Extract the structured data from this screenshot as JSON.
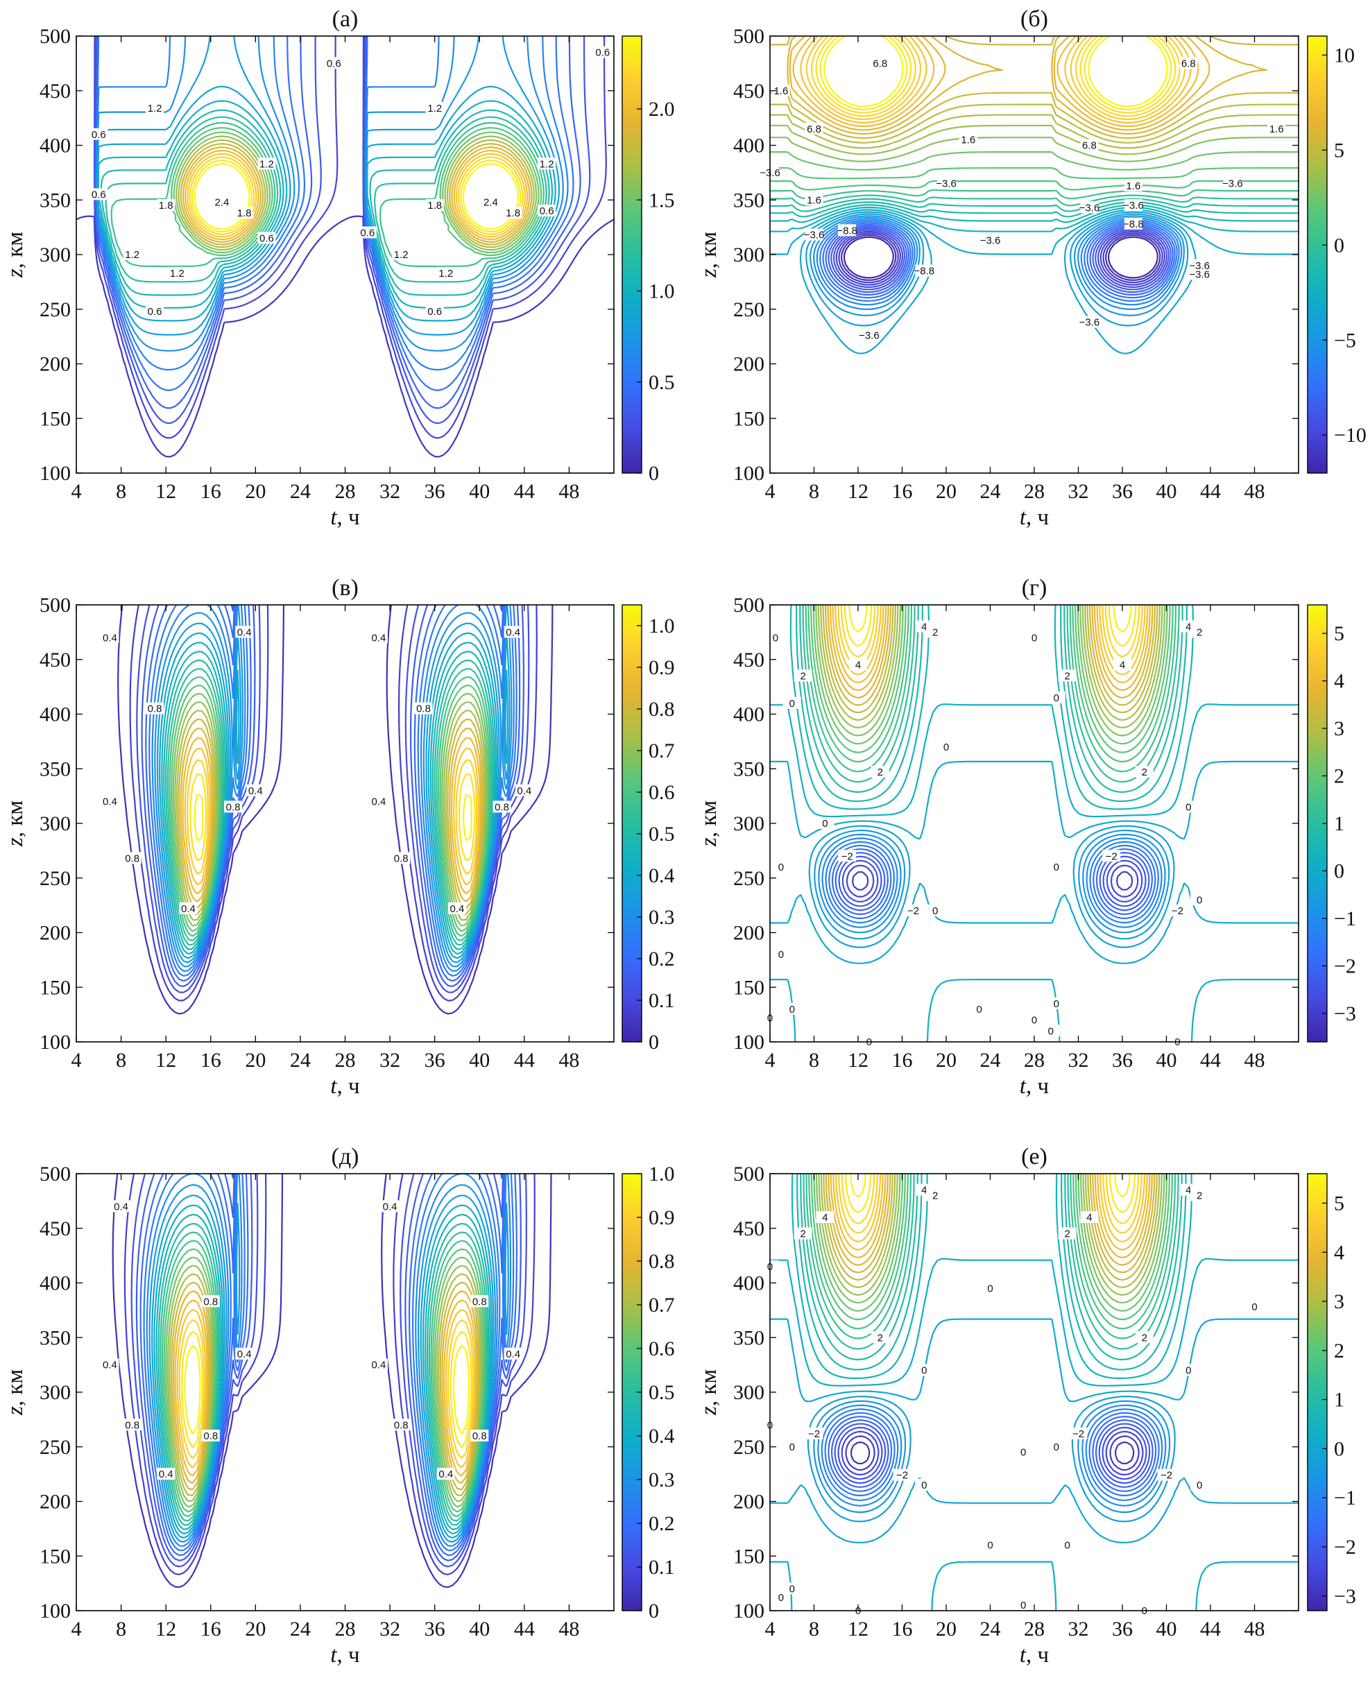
{
  "figure": {
    "xlabel_var": "t",
    "xlabel_unit": ", ч",
    "ylabel_var": "z",
    "ylabel_unit": ", км"
  },
  "chart_data": [
    {
      "id": "a",
      "title": "(а)",
      "type": "contour",
      "kind": "wave",
      "tpeak": 17,
      "zpeak": 345,
      "ztop": 500,
      "xlabel": "t, ч",
      "ylabel": "z, км",
      "xticks": [
        4,
        8,
        12,
        16,
        20,
        24,
        28,
        32,
        36,
        40,
        44,
        48
      ],
      "yticks": [
        100,
        150,
        200,
        250,
        300,
        350,
        400,
        450,
        500
      ],
      "xlim": [
        4,
        52
      ],
      "ylim": [
        100,
        500
      ],
      "colorbar": {
        "ticks": [
          0,
          0.5,
          1.0,
          1.5,
          2.0
        ],
        "labels": [
          "0",
          "0.5",
          "1.0",
          "1.5",
          "2.0"
        ],
        "range": [
          0,
          2.4
        ]
      },
      "levels": {
        "min": 0.1,
        "max": 2.4,
        "step": 0.1
      },
      "contour_labels": [
        {
          "text": "2.4",
          "t": 17,
          "z": 348
        },
        {
          "text": "1.8",
          "t": 12,
          "z": 345
        },
        {
          "text": "1.8",
          "t": 19,
          "z": 338
        },
        {
          "text": "1.2",
          "t": 9,
          "z": 300
        },
        {
          "text": "1.2",
          "t": 13,
          "z": 283
        },
        {
          "text": "0.6",
          "t": 11,
          "z": 248
        },
        {
          "text": "0.6",
          "t": 21,
          "z": 315
        },
        {
          "text": "1.2",
          "t": 11,
          "z": 434
        },
        {
          "text": "1.2",
          "t": 21,
          "z": 383
        },
        {
          "text": "0.6",
          "t": 6,
          "z": 410
        },
        {
          "text": "0.6",
          "t": 6,
          "z": 355
        },
        {
          "text": "0.6",
          "t": 27,
          "z": 475
        },
        {
          "text": "2.4",
          "t": 41,
          "z": 348
        },
        {
          "text": "1.8",
          "t": 36,
          "z": 345
        },
        {
          "text": "1.8",
          "t": 43,
          "z": 338
        },
        {
          "text": "1.2",
          "t": 33,
          "z": 300
        },
        {
          "text": "1.2",
          "t": 37,
          "z": 283
        },
        {
          "text": "0.6",
          "t": 36,
          "z": 248
        },
        {
          "text": "0.6",
          "t": 30,
          "z": 320
        },
        {
          "text": "1.2",
          "t": 36,
          "z": 434
        },
        {
          "text": "1.2",
          "t": 46,
          "z": 383
        },
        {
          "text": "0.6",
          "t": 46,
          "z": 340
        },
        {
          "text": "0.6",
          "t": 51,
          "z": 485
        }
      ]
    },
    {
      "id": "b",
      "title": "(б)",
      "type": "contour",
      "kind": "wind",
      "xlabel": "t, ч",
      "ylabel": "z, км",
      "xticks": [
        4,
        8,
        12,
        16,
        20,
        24,
        28,
        32,
        36,
        40,
        44,
        48
      ],
      "yticks": [
        100,
        150,
        200,
        250,
        300,
        350,
        400,
        450,
        500
      ],
      "xlim": [
        4,
        52
      ],
      "ylim": [
        100,
        500
      ],
      "colorbar": {
        "ticks": [
          -10,
          -5,
          0,
          5,
          10
        ],
        "labels": [
          "−10",
          "−5",
          "0",
          "5",
          "10"
        ],
        "range": [
          -12,
          11
        ]
      },
      "levels": {
        "min": -12,
        "max": 11,
        "step": 0.6
      },
      "contour_labels": [
        {
          "text": "1.6",
          "t": 5,
          "z": 450
        },
        {
          "text": "6.8",
          "t": 14,
          "z": 475
        },
        {
          "text": "6.8",
          "t": 8,
          "z": 415
        },
        {
          "text": "1.6",
          "t": 22,
          "z": 405
        },
        {
          "text": "−3.6",
          "t": 4,
          "z": 375
        },
        {
          "text": "1.6",
          "t": 8,
          "z": 350
        },
        {
          "text": "−3.6",
          "t": 8,
          "z": 318
        },
        {
          "text": "−8.8",
          "t": 11,
          "z": 322
        },
        {
          "text": "−3.6",
          "t": 20,
          "z": 365
        },
        {
          "text": "−3.6",
          "t": 24,
          "z": 313
        },
        {
          "text": "−8.8",
          "t": 18,
          "z": 285
        },
        {
          "text": "−3.6",
          "t": 13,
          "z": 226
        },
        {
          "text": "6.8",
          "t": 42,
          "z": 475
        },
        {
          "text": "6.8",
          "t": 33,
          "z": 400
        },
        {
          "text": "1.6",
          "t": 37,
          "z": 363
        },
        {
          "text": "−3.6",
          "t": 33,
          "z": 343
        },
        {
          "text": "−3.6",
          "t": 37,
          "z": 345
        },
        {
          "text": "−8.8",
          "t": 37,
          "z": 328
        },
        {
          "text": "−3.6",
          "t": 46,
          "z": 365
        },
        {
          "text": "1.6",
          "t": 50,
          "z": 415
        },
        {
          "text": "−3.6",
          "t": 33,
          "z": 238
        },
        {
          "text": "−3.6",
          "t": 43,
          "z": 282
        },
        {
          "text": "−3.6",
          "t": 43,
          "z": 290
        }
      ]
    },
    {
      "id": "c",
      "title": "(в)",
      "type": "contour",
      "kind": "plume",
      "tpeak": 15,
      "zpeak": 305,
      "xlabel": "t, ч",
      "ylabel": "z, км",
      "xticks": [
        4,
        8,
        12,
        16,
        20,
        24,
        28,
        32,
        36,
        40,
        44,
        48
      ],
      "yticks": [
        100,
        150,
        200,
        250,
        300,
        350,
        400,
        450,
        500
      ],
      "xlim": [
        4,
        52
      ],
      "ylim": [
        100,
        500
      ],
      "colorbar": {
        "ticks": [
          0,
          0.1,
          0.2,
          0.3,
          0.4,
          0.5,
          0.6,
          0.7,
          0.8,
          0.9,
          1.0
        ],
        "labels": [
          "0",
          "0.1",
          "0.2",
          "0.3",
          "0.4",
          "0.5",
          "0.6",
          "0.7",
          "0.8",
          "0.9",
          "1.0"
        ],
        "range": [
          0,
          1.05
        ]
      },
      "levels": {
        "min": 0.03,
        "max": 1.05,
        "step": 0.04
      },
      "contour_labels": [
        {
          "text": "0.4",
          "t": 7,
          "z": 470
        },
        {
          "text": "0.4",
          "t": 19,
          "z": 475
        },
        {
          "text": "0.8",
          "t": 11,
          "z": 405
        },
        {
          "text": "0.4",
          "t": 7,
          "z": 320
        },
        {
          "text": "0.8",
          "t": 18,
          "z": 315
        },
        {
          "text": "0.4",
          "t": 20,
          "z": 330
        },
        {
          "text": "0.8",
          "t": 9,
          "z": 268
        },
        {
          "text": "0.4",
          "t": 14,
          "z": 222
        },
        {
          "text": "0.4",
          "t": 31,
          "z": 470
        },
        {
          "text": "0.4",
          "t": 43,
          "z": 475
        },
        {
          "text": "0.8",
          "t": 35,
          "z": 405
        },
        {
          "text": "0.4",
          "t": 31,
          "z": 320
        },
        {
          "text": "0.8",
          "t": 42,
          "z": 315
        },
        {
          "text": "0.4",
          "t": 44,
          "z": 330
        },
        {
          "text": "0.8",
          "t": 33,
          "z": 268
        },
        {
          "text": "0.4",
          "t": 38,
          "z": 222
        }
      ]
    },
    {
      "id": "d",
      "title": "(г)",
      "type": "contour",
      "kind": "dipole",
      "zneg": 248,
      "xlabel": "t, ч",
      "ylabel": "z, км",
      "xticks": [
        4,
        8,
        12,
        16,
        20,
        24,
        28,
        32,
        36,
        40,
        44,
        48
      ],
      "yticks": [
        100,
        150,
        200,
        250,
        300,
        350,
        400,
        450,
        500
      ],
      "xlim": [
        4,
        52
      ],
      "ylim": [
        100,
        500
      ],
      "colorbar": {
        "ticks": [
          -3,
          -2,
          -1,
          0,
          1,
          2,
          3,
          4,
          5
        ],
        "labels": [
          "−3",
          "−2",
          "−1",
          "0",
          "1",
          "2",
          "3",
          "4",
          "5"
        ],
        "range": [
          -3.6,
          5.6
        ]
      },
      "levels": {
        "min": -3.6,
        "max": 5.6,
        "step": 0.25
      },
      "contour_labels": [
        {
          "text": "0",
          "t": 4.5,
          "z": 470
        },
        {
          "text": "2",
          "t": 7,
          "z": 435
        },
        {
          "text": "4",
          "t": 12,
          "z": 445
        },
        {
          "text": "4",
          "t": 18,
          "z": 480
        },
        {
          "text": "2",
          "t": 19,
          "z": 475
        },
        {
          "text": "0",
          "t": 6,
          "z": 410
        },
        {
          "text": "0",
          "t": 20,
          "z": 370
        },
        {
          "text": "2",
          "t": 14,
          "z": 347
        },
        {
          "text": "0",
          "t": 9,
          "z": 300
        },
        {
          "text": "−2",
          "t": 11,
          "z": 270
        },
        {
          "text": "0",
          "t": 5,
          "z": 260
        },
        {
          "text": "−2",
          "t": 17,
          "z": 220
        },
        {
          "text": "0",
          "t": 19,
          "z": 220
        },
        {
          "text": "0",
          "t": 5,
          "z": 180
        },
        {
          "text": "0",
          "t": 6,
          "z": 130
        },
        {
          "text": "0",
          "t": 4,
          "z": 122
        },
        {
          "text": "0",
          "t": 13,
          "z": 100
        },
        {
          "text": "0",
          "t": 23,
          "z": 130
        },
        {
          "text": "0",
          "t": 28,
          "z": 120
        },
        {
          "text": "0",
          "t": 29.5,
          "z": 110
        },
        {
          "text": "0",
          "t": 28,
          "z": 470
        },
        {
          "text": "0",
          "t": 30,
          "z": 415
        },
        {
          "text": "2",
          "t": 31,
          "z": 435
        },
        {
          "text": "4",
          "t": 36,
          "z": 445
        },
        {
          "text": "4",
          "t": 42,
          "z": 480
        },
        {
          "text": "2",
          "t": 43,
          "z": 475
        },
        {
          "text": "2",
          "t": 38,
          "z": 347
        },
        {
          "text": "0",
          "t": 42,
          "z": 315
        },
        {
          "text": "−2",
          "t": 35,
          "z": 270
        },
        {
          "text": "0",
          "t": 30,
          "z": 260
        },
        {
          "text": "−2",
          "t": 41,
          "z": 220
        },
        {
          "text": "0",
          "t": 43,
          "z": 230
        },
        {
          "text": "0",
          "t": 30,
          "z": 135
        },
        {
          "text": "0",
          "t": 41,
          "z": 100
        }
      ]
    },
    {
      "id": "e",
      "title": "(д)",
      "type": "contour",
      "kind": "plume",
      "tpeak": 14.5,
      "zpeak": 302,
      "xlabel": "t, ч",
      "ylabel": "z, км",
      "xticks": [
        4,
        8,
        12,
        16,
        20,
        24,
        28,
        32,
        36,
        40,
        44,
        48
      ],
      "yticks": [
        100,
        150,
        200,
        250,
        300,
        350,
        400,
        450,
        500
      ],
      "xlim": [
        4,
        52
      ],
      "ylim": [
        100,
        500
      ],
      "colorbar": {
        "ticks": [
          0,
          0.1,
          0.2,
          0.3,
          0.4,
          0.5,
          0.6,
          0.7,
          0.8,
          0.9,
          1.0
        ],
        "labels": [
          "0",
          "0.1",
          "0.2",
          "0.3",
          "0.4",
          "0.5",
          "0.6",
          "0.7",
          "0.8",
          "0.9",
          "1.0"
        ],
        "range": [
          0,
          1.0
        ]
      },
      "levels": {
        "min": 0.03,
        "max": 1.0,
        "step": 0.04
      },
      "contour_labels": [
        {
          "text": "0.4",
          "t": 8,
          "z": 470
        },
        {
          "text": "0.8",
          "t": 16,
          "z": 383
        },
        {
          "text": "0.4",
          "t": 7,
          "z": 325
        },
        {
          "text": "0.4",
          "t": 19,
          "z": 335
        },
        {
          "text": "0.8",
          "t": 9,
          "z": 270
        },
        {
          "text": "0.8",
          "t": 16,
          "z": 260
        },
        {
          "text": "0.4",
          "t": 12,
          "z": 225
        },
        {
          "text": "0.4",
          "t": 32,
          "z": 470
        },
        {
          "text": "0.8",
          "t": 40,
          "z": 383
        },
        {
          "text": "0.4",
          "t": 31,
          "z": 325
        },
        {
          "text": "0.4",
          "t": 43,
          "z": 335
        },
        {
          "text": "0.8",
          "t": 33,
          "z": 270
        },
        {
          "text": "0.8",
          "t": 40,
          "z": 260
        },
        {
          "text": "0.4",
          "t": 37,
          "z": 225
        }
      ]
    },
    {
      "id": "f",
      "title": "(е)",
      "type": "contour",
      "kind": "dipole",
      "zneg": 245,
      "xlabel": "t, ч",
      "ylabel": "z, км",
      "xticks": [
        4,
        8,
        12,
        16,
        20,
        24,
        28,
        32,
        36,
        40,
        44,
        48
      ],
      "yticks": [
        100,
        150,
        200,
        250,
        300,
        350,
        400,
        450,
        500
      ],
      "xlim": [
        4,
        52
      ],
      "ylim": [
        100,
        500
      ],
      "colorbar": {
        "ticks": [
          -3,
          -2,
          -1,
          0,
          1,
          2,
          3,
          4,
          5
        ],
        "labels": [
          "−3",
          "−2",
          "−1",
          "0",
          "1",
          "2",
          "3",
          "4",
          "5"
        ],
        "range": [
          -3.3,
          5.6
        ]
      },
      "levels": {
        "min": -3.3,
        "max": 5.6,
        "step": 0.25
      },
      "contour_labels": [
        {
          "text": "4",
          "t": 9,
          "z": 460
        },
        {
          "text": "2",
          "t": 7,
          "z": 445
        },
        {
          "text": "4",
          "t": 18,
          "z": 485
        },
        {
          "text": "2",
          "t": 19,
          "z": 480
        },
        {
          "text": "0",
          "t": 4,
          "z": 415
        },
        {
          "text": "0",
          "t": 24,
          "z": 395
        },
        {
          "text": "2",
          "t": 14,
          "z": 350
        },
        {
          "text": "0",
          "t": 18,
          "z": 320
        },
        {
          "text": "0",
          "t": 4,
          "z": 270
        },
        {
          "text": "−2",
          "t": 8,
          "z": 262
        },
        {
          "text": "0",
          "t": 6,
          "z": 250
        },
        {
          "text": "−2",
          "t": 16,
          "z": 224
        },
        {
          "text": "0",
          "t": 18,
          "z": 215
        },
        {
          "text": "0",
          "t": 24,
          "z": 160
        },
        {
          "text": "0",
          "t": 27,
          "z": 245
        },
        {
          "text": "0",
          "t": 6,
          "z": 120
        },
        {
          "text": "0",
          "t": 5,
          "z": 112
        },
        {
          "text": "0",
          "t": 12,
          "z": 100
        },
        {
          "text": "0",
          "t": 27,
          "z": 105
        },
        {
          "text": "4",
          "t": 33,
          "z": 460
        },
        {
          "text": "2",
          "t": 31,
          "z": 445
        },
        {
          "text": "4",
          "t": 42,
          "z": 485
        },
        {
          "text": "2",
          "t": 43,
          "z": 480
        },
        {
          "text": "0",
          "t": 48,
          "z": 378
        },
        {
          "text": "2",
          "t": 38,
          "z": 350
        },
        {
          "text": "0",
          "t": 42,
          "z": 320
        },
        {
          "text": "−2",
          "t": 32,
          "z": 262
        },
        {
          "text": "0",
          "t": 30,
          "z": 250
        },
        {
          "text": "−2",
          "t": 40,
          "z": 224
        },
        {
          "text": "0",
          "t": 43,
          "z": 215
        },
        {
          "text": "0",
          "t": 31,
          "z": 160
        },
        {
          "text": "0",
          "t": 38,
          "z": 100
        }
      ]
    }
  ]
}
